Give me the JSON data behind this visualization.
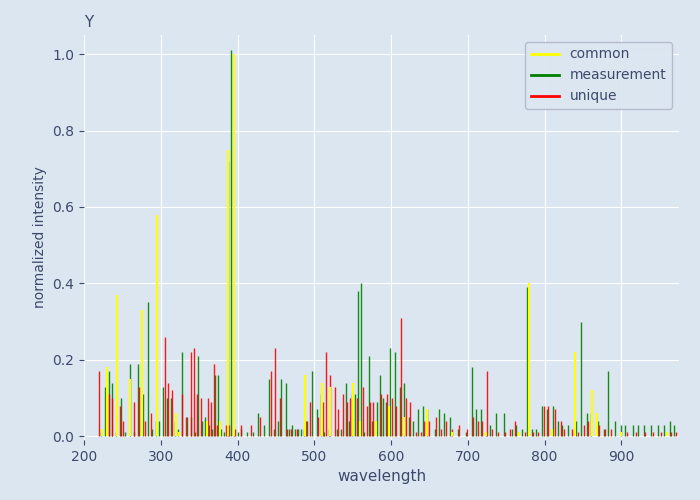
{
  "title": "Y",
  "xlabel": "wavelength",
  "ylabel": "normalized intensity",
  "xlim": [
    200,
    975
  ],
  "ylim": [
    -0.01,
    1.05
  ],
  "background_color": "#dce6f1",
  "figure_color": "#dce6f1",
  "common_lines": [
    [
      224,
      0.02
    ],
    [
      230,
      0.18
    ],
    [
      243,
      0.37
    ],
    [
      260,
      0.15
    ],
    [
      276,
      0.33
    ],
    [
      295,
      0.58
    ],
    [
      320,
      0.06
    ],
    [
      324,
      0.01
    ],
    [
      360,
      0.04
    ],
    [
      377,
      0.04
    ],
    [
      387,
      0.75
    ],
    [
      395,
      1.0
    ],
    [
      488,
      0.16
    ],
    [
      510,
      0.14
    ],
    [
      520,
      0.13
    ],
    [
      550,
      0.14
    ],
    [
      560,
      0.04
    ],
    [
      580,
      0.04
    ],
    [
      597,
      0.08
    ],
    [
      617,
      0.05
    ],
    [
      647,
      0.07
    ],
    [
      679,
      0.01
    ],
    [
      724,
      0.01
    ],
    [
      766,
      0.01
    ],
    [
      780,
      0.4
    ],
    [
      810,
      0.02
    ],
    [
      840,
      0.22
    ],
    [
      862,
      0.12
    ],
    [
      868,
      0.06
    ],
    [
      900,
      0.01
    ],
    [
      960,
      0.01
    ]
  ],
  "measurement_lines": [
    [
      222,
      0.01
    ],
    [
      228,
      0.13
    ],
    [
      232,
      0.17
    ],
    [
      237,
      0.14
    ],
    [
      242,
      0.01
    ],
    [
      248,
      0.1
    ],
    [
      254,
      0.01
    ],
    [
      260,
      0.19
    ],
    [
      265,
      0.01
    ],
    [
      270,
      0.19
    ],
    [
      277,
      0.11
    ],
    [
      283,
      0.35
    ],
    [
      289,
      0.02
    ],
    [
      294,
      0.04
    ],
    [
      298,
      0.04
    ],
    [
      303,
      0.13
    ],
    [
      308,
      0.1
    ],
    [
      313,
      0.1
    ],
    [
      318,
      0.04
    ],
    [
      323,
      0.02
    ],
    [
      328,
      0.22
    ],
    [
      334,
      0.05
    ],
    [
      339,
      0.05
    ],
    [
      344,
      0.01
    ],
    [
      349,
      0.21
    ],
    [
      354,
      0.04
    ],
    [
      358,
      0.05
    ],
    [
      363,
      0.03
    ],
    [
      367,
      0.02
    ],
    [
      371,
      0.16
    ],
    [
      375,
      0.16
    ],
    [
      379,
      0.02
    ],
    [
      383,
      0.01
    ],
    [
      387,
      0.72
    ],
    [
      392,
      1.01
    ],
    [
      396,
      0.02
    ],
    [
      400,
      0.01
    ],
    [
      404,
      0.02
    ],
    [
      412,
      0.01
    ],
    [
      420,
      0.01
    ],
    [
      427,
      0.06
    ],
    [
      435,
      0.03
    ],
    [
      441,
      0.15
    ],
    [
      447,
      0.02
    ],
    [
      453,
      0.04
    ],
    [
      457,
      0.15
    ],
    [
      463,
      0.14
    ],
    [
      467,
      0.02
    ],
    [
      471,
      0.03
    ],
    [
      475,
      0.02
    ],
    [
      479,
      0.02
    ],
    [
      483,
      0.02
    ],
    [
      487,
      0.02
    ],
    [
      491,
      0.04
    ],
    [
      497,
      0.17
    ],
    [
      503,
      0.07
    ],
    [
      509,
      0.11
    ],
    [
      513,
      0.01
    ],
    [
      519,
      0.02
    ],
    [
      529,
      0.02
    ],
    [
      535,
      0.02
    ],
    [
      541,
      0.14
    ],
    [
      545,
      0.04
    ],
    [
      549,
      0.11
    ],
    [
      553,
      0.11
    ],
    [
      557,
      0.38
    ],
    [
      561,
      0.4
    ],
    [
      565,
      0.01
    ],
    [
      571,
      0.21
    ],
    [
      575,
      0.04
    ],
    [
      581,
      0.09
    ],
    [
      585,
      0.16
    ],
    [
      589,
      0.1
    ],
    [
      593,
      0.09
    ],
    [
      599,
      0.23
    ],
    [
      605,
      0.22
    ],
    [
      611,
      0.13
    ],
    [
      617,
      0.14
    ],
    [
      623,
      0.05
    ],
    [
      629,
      0.04
    ],
    [
      635,
      0.07
    ],
    [
      641,
      0.08
    ],
    [
      647,
      0.07
    ],
    [
      657,
      0.02
    ],
    [
      663,
      0.07
    ],
    [
      669,
      0.06
    ],
    [
      677,
      0.05
    ],
    [
      687,
      0.02
    ],
    [
      697,
      0.01
    ],
    [
      705,
      0.18
    ],
    [
      711,
      0.07
    ],
    [
      717,
      0.07
    ],
    [
      723,
      0.01
    ],
    [
      729,
      0.03
    ],
    [
      737,
      0.06
    ],
    [
      747,
      0.06
    ],
    [
      757,
      0.02
    ],
    [
      763,
      0.03
    ],
    [
      771,
      0.02
    ],
    [
      777,
      0.39
    ],
    [
      783,
      0.02
    ],
    [
      789,
      0.02
    ],
    [
      797,
      0.08
    ],
    [
      803,
      0.07
    ],
    [
      811,
      0.08
    ],
    [
      817,
      0.04
    ],
    [
      823,
      0.03
    ],
    [
      831,
      0.03
    ],
    [
      841,
      0.04
    ],
    [
      847,
      0.3
    ],
    [
      855,
      0.06
    ],
    [
      861,
      0.06
    ],
    [
      869,
      0.04
    ],
    [
      877,
      0.02
    ],
    [
      883,
      0.17
    ],
    [
      891,
      0.04
    ],
    [
      899,
      0.03
    ],
    [
      905,
      0.03
    ],
    [
      915,
      0.03
    ],
    [
      921,
      0.03
    ],
    [
      929,
      0.03
    ],
    [
      939,
      0.03
    ],
    [
      947,
      0.03
    ],
    [
      955,
      0.03
    ],
    [
      963,
      0.04
    ],
    [
      969,
      0.03
    ]
  ],
  "unique_lines": [
    [
      220,
      0.17
    ],
    [
      233,
      0.11
    ],
    [
      237,
      0.1
    ],
    [
      247,
      0.08
    ],
    [
      251,
      0.04
    ],
    [
      265,
      0.09
    ],
    [
      271,
      0.13
    ],
    [
      279,
      0.04
    ],
    [
      287,
      0.06
    ],
    [
      305,
      0.26
    ],
    [
      309,
      0.14
    ],
    [
      315,
      0.12
    ],
    [
      327,
      0.11
    ],
    [
      333,
      0.05
    ],
    [
      339,
      0.22
    ],
    [
      343,
      0.23
    ],
    [
      347,
      0.11
    ],
    [
      353,
      0.1
    ],
    [
      361,
      0.1
    ],
    [
      365,
      0.09
    ],
    [
      369,
      0.19
    ],
    [
      373,
      0.03
    ],
    [
      385,
      0.03
    ],
    [
      389,
      0.03
    ],
    [
      397,
      0.02
    ],
    [
      405,
      0.03
    ],
    [
      417,
      0.03
    ],
    [
      429,
      0.05
    ],
    [
      443,
      0.17
    ],
    [
      449,
      0.23
    ],
    [
      455,
      0.1
    ],
    [
      465,
      0.02
    ],
    [
      469,
      0.02
    ],
    [
      477,
      0.02
    ],
    [
      489,
      0.04
    ],
    [
      495,
      0.09
    ],
    [
      505,
      0.05
    ],
    [
      511,
      0.09
    ],
    [
      515,
      0.22
    ],
    [
      521,
      0.16
    ],
    [
      527,
      0.13
    ],
    [
      531,
      0.07
    ],
    [
      537,
      0.11
    ],
    [
      543,
      0.09
    ],
    [
      547,
      0.1
    ],
    [
      555,
      0.1
    ],
    [
      563,
      0.13
    ],
    [
      569,
      0.08
    ],
    [
      573,
      0.09
    ],
    [
      577,
      0.09
    ],
    [
      587,
      0.11
    ],
    [
      595,
      0.11
    ],
    [
      601,
      0.1
    ],
    [
      607,
      0.08
    ],
    [
      613,
      0.31
    ],
    [
      619,
      0.1
    ],
    [
      625,
      0.09
    ],
    [
      633,
      0.01
    ],
    [
      639,
      0.01
    ],
    [
      643,
      0.04
    ],
    [
      649,
      0.04
    ],
    [
      659,
      0.05
    ],
    [
      665,
      0.02
    ],
    [
      671,
      0.04
    ],
    [
      679,
      0.02
    ],
    [
      689,
      0.03
    ],
    [
      699,
      0.02
    ],
    [
      707,
      0.05
    ],
    [
      713,
      0.04
    ],
    [
      719,
      0.04
    ],
    [
      725,
      0.17
    ],
    [
      731,
      0.02
    ],
    [
      739,
      0.01
    ],
    [
      749,
      0.01
    ],
    [
      755,
      0.02
    ],
    [
      761,
      0.04
    ],
    [
      775,
      0.01
    ],
    [
      785,
      0.01
    ],
    [
      791,
      0.01
    ],
    [
      799,
      0.08
    ],
    [
      805,
      0.08
    ],
    [
      813,
      0.07
    ],
    [
      821,
      0.04
    ],
    [
      825,
      0.02
    ],
    [
      835,
      0.02
    ],
    [
      843,
      0.01
    ],
    [
      851,
      0.03
    ],
    [
      857,
      0.04
    ],
    [
      871,
      0.03
    ],
    [
      879,
      0.02
    ],
    [
      887,
      0.02
    ],
    [
      907,
      0.01
    ],
    [
      919,
      0.01
    ],
    [
      931,
      0.01
    ],
    [
      941,
      0.01
    ],
    [
      951,
      0.01
    ],
    [
      965,
      0.01
    ],
    [
      971,
      0.01
    ]
  ]
}
